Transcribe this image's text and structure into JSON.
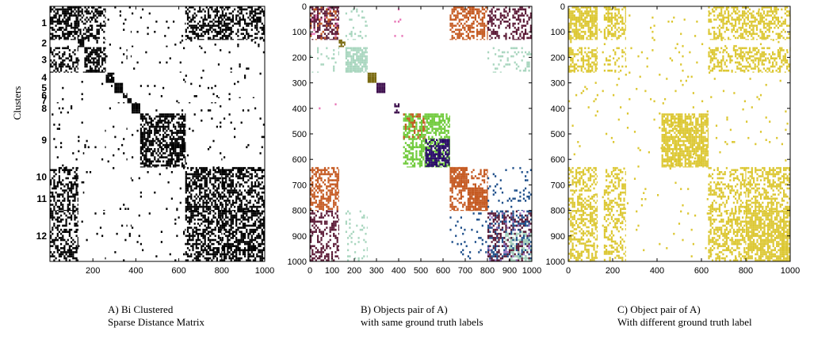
{
  "charts": [
    {
      "type": "heatmap",
      "ylabel": "Clusters",
      "cluster_labels": [
        "1",
        "2",
        "3",
        "4",
        "5",
        "6",
        "7",
        "8",
        "9",
        "10",
        "11",
        "12"
      ],
      "x_ticks": [
        "200",
        "400",
        "600",
        "800",
        "1000"
      ],
      "caption_line1": "A) Bi Clustered",
      "caption_line2": "Sparse Distance Matrix"
    },
    {
      "type": "heatmap",
      "x_ticks": [
        "0",
        "100",
        "200",
        "300",
        "400",
        "500",
        "600",
        "700",
        "800",
        "900",
        "1000"
      ],
      "y_ticks": [
        "0",
        "100",
        "200",
        "300",
        "400",
        "500",
        "600",
        "700",
        "800",
        "900",
        "1000"
      ],
      "caption_line1": "B) Objects pair of A)",
      "caption_line2": "with same ground truth labels"
    },
    {
      "type": "heatmap",
      "x_ticks": [
        "0",
        "200",
        "400",
        "600",
        "800",
        "1000"
      ],
      "y_ticks": [
        "0",
        "100",
        "200",
        "300",
        "400",
        "500",
        "600",
        "700",
        "800",
        "900",
        "1000"
      ],
      "caption_line1": "C) Object pair of A)",
      "caption_line2": "With different ground truth label"
    }
  ],
  "chart_data": [
    {
      "type": "heatmap",
      "title": "",
      "x_range": [
        0,
        1000
      ],
      "y_range": [
        0,
        1000
      ],
      "color": "#000000",
      "blocks": [
        {
          "cluster": "1",
          "start": 0,
          "end": 130
        },
        {
          "cluster": "2",
          "start": 130,
          "end": 160
        },
        {
          "cluster": "3",
          "start": 160,
          "end": 260
        },
        {
          "cluster": "4",
          "start": 260,
          "end": 300
        },
        {
          "cluster": "5",
          "start": 300,
          "end": 340
        },
        {
          "cluster": "6",
          "start": 340,
          "end": 360
        },
        {
          "cluster": "7",
          "start": 360,
          "end": 380
        },
        {
          "cluster": "8",
          "start": 380,
          "end": 420
        },
        {
          "cluster": "9",
          "start": 420,
          "end": 630
        },
        {
          "cluster": "10",
          "start": 630,
          "end": 710
        },
        {
          "cluster": "11",
          "start": 710,
          "end": 800
        },
        {
          "cluster": "12",
          "start": 800,
          "end": 1000
        }
      ]
    },
    {
      "type": "heatmap",
      "title": "",
      "x_range": [
        0,
        1000
      ],
      "y_range": [
        0,
        1000
      ],
      "colors": [
        "#5b1a36",
        "#c55a22",
        "#a9d6bf",
        "#7a6a10",
        "#3a0a4a",
        "#6fca3a",
        "#2a0a6a",
        "#1f4f8a",
        "#e878b8",
        "#9a70c0"
      ]
    },
    {
      "type": "heatmap",
      "title": "",
      "x_range": [
        0,
        1000
      ],
      "y_range": [
        0,
        1000
      ],
      "color": "#dcc733"
    }
  ]
}
